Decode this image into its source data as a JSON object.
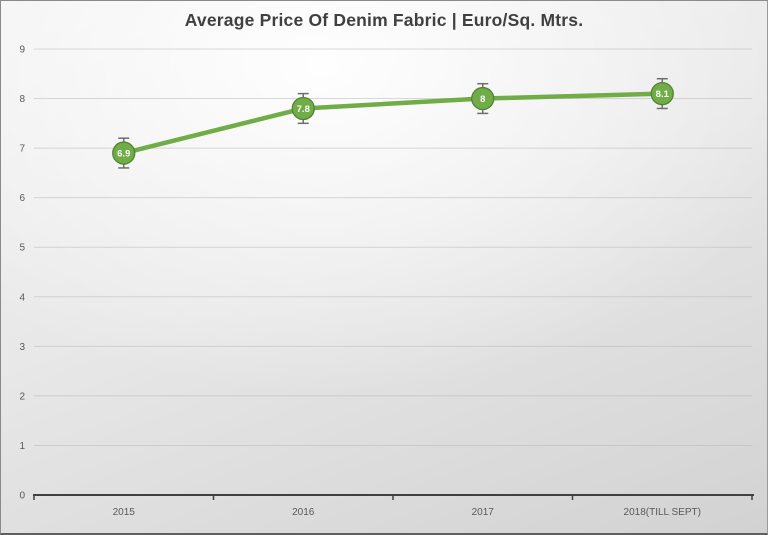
{
  "chart_data": {
    "type": "line",
    "title": "Average Price Of Denim Fabric | Euro/Sq. Mtrs.",
    "categories": [
      "2015",
      "2016",
      "2017",
      "2018(TILL SEPT)"
    ],
    "values": [
      6.9,
      7.8,
      8,
      8.1
    ],
    "data_labels": [
      "6.9",
      "7.8",
      "8",
      "8.1"
    ],
    "error_bar": 0.3,
    "ylim": [
      0,
      9
    ],
    "yticks": [
      0,
      1,
      2,
      3,
      4,
      5,
      6,
      7,
      8,
      9
    ],
    "xlabel": "",
    "ylabel": "",
    "grid": true,
    "legend": "none",
    "colors": {
      "line": "#70AD47",
      "marker_fill": "#70AD47",
      "marker_border": "#538135",
      "data_label_text": "#ffffff",
      "error_bar": "#6e6e6e",
      "axis_line": "#404040",
      "tick_label": "#595959",
      "gridline": "#b9b9b9",
      "title": "#404040"
    }
  }
}
